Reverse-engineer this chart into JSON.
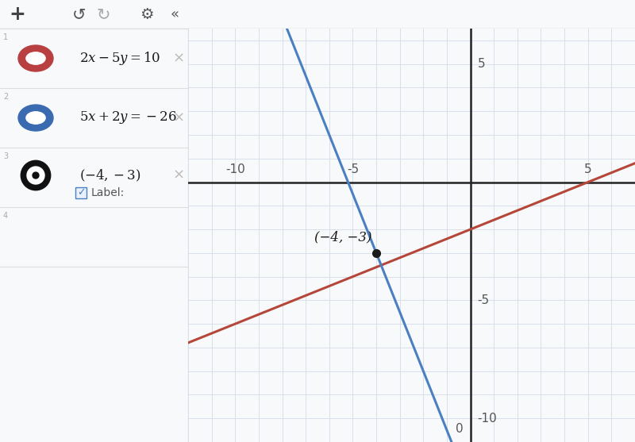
{
  "xmin": -12,
  "xmax": 7,
  "ymin": -11,
  "ymax": 6.5,
  "xticks": [
    -10,
    -5,
    0,
    5
  ],
  "yticks": [
    -10,
    -5,
    5
  ],
  "grid_color": "#d4dce8",
  "bg_color": "#f8f9fb",
  "ax_color": "#222222",
  "line1_color": "#b5473a",
  "line2_color": "#4a7fc1",
  "point_color": "#1a1a1a",
  "point_x": -4,
  "point_y": -3,
  "point_label": "(−4, −3)",
  "sidebar_bg": "#ffffff",
  "sidebar_border": "#e0e0e0",
  "toolbar_bg": "#f0f1f3",
  "icon1_color": "#b84040",
  "icon2_color": "#3a6bb0",
  "tick_color": "#555555",
  "tick_fontsize": 11
}
